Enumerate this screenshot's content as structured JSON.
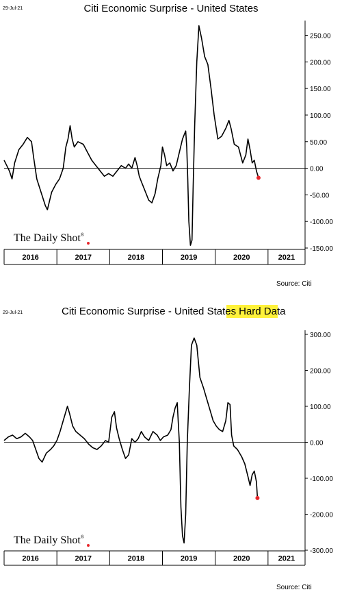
{
  "chart_data": [
    {
      "type": "line",
      "date": "29-Jul-21",
      "title": "Citi Economic Surprise - United States",
      "title_highlight": "",
      "source": "Source: Citi",
      "brand": "The Daily Shot",
      "brand_mark": "®",
      "xlabel": "",
      "ylabel": "",
      "x_labels": [
        "2016",
        "2017",
        "2018",
        "2019",
        "2020",
        "2021"
      ],
      "xlim": [
        2016.0,
        2021.65
      ],
      "ylim": [
        -150,
        270
      ],
      "yticks": [
        250,
        200,
        150,
        100,
        50,
        0,
        -50,
        -100,
        -150
      ],
      "ytick_labels": [
        "250.00",
        "200.00",
        "150.00",
        "100.00",
        "50.00",
        "0.00",
        "-50.00",
        "-100.00",
        "-150.00"
      ],
      "grid": false,
      "zero_line": true,
      "end_marker_color": "#e8262b",
      "series": [
        {
          "values": [
            [
              2016.0,
              15
            ],
            [
              2016.05,
              5
            ],
            [
              2016.1,
              -5
            ],
            [
              2016.15,
              -20
            ],
            [
              2016.2,
              10
            ],
            [
              2016.28,
              35
            ],
            [
              2016.36,
              45
            ],
            [
              2016.44,
              58
            ],
            [
              2016.52,
              50
            ],
            [
              2016.56,
              20
            ],
            [
              2016.62,
              -20
            ],
            [
              2016.7,
              -45
            ],
            [
              2016.78,
              -70
            ],
            [
              2016.82,
              -78
            ],
            [
              2016.9,
              -45
            ],
            [
              2016.98,
              -30
            ],
            [
              2017.05,
              -20
            ],
            [
              2017.12,
              0
            ],
            [
              2017.17,
              40
            ],
            [
              2017.21,
              55
            ],
            [
              2017.25,
              80
            ],
            [
              2017.29,
              55
            ],
            [
              2017.33,
              40
            ],
            [
              2017.4,
              50
            ],
            [
              2017.5,
              45
            ],
            [
              2017.58,
              30
            ],
            [
              2017.66,
              15
            ],
            [
              2017.74,
              5
            ],
            [
              2017.82,
              -5
            ],
            [
              2017.9,
              -15
            ],
            [
              2017.98,
              -10
            ],
            [
              2018.06,
              -15
            ],
            [
              2018.14,
              -5
            ],
            [
              2018.22,
              5
            ],
            [
              2018.3,
              0
            ],
            [
              2018.36,
              8
            ],
            [
              2018.42,
              0
            ],
            [
              2018.48,
              20
            ],
            [
              2018.52,
              5
            ],
            [
              2018.56,
              -15
            ],
            [
              2018.6,
              -25
            ],
            [
              2018.64,
              -35
            ],
            [
              2018.68,
              -45
            ],
            [
              2018.74,
              -60
            ],
            [
              2018.8,
              -65
            ],
            [
              2018.86,
              -48
            ],
            [
              2018.91,
              -20
            ],
            [
              2018.97,
              5
            ],
            [
              2019.0,
              40
            ],
            [
              2019.04,
              25
            ],
            [
              2019.08,
              5
            ],
            [
              2019.14,
              10
            ],
            [
              2019.2,
              -5
            ],
            [
              2019.26,
              5
            ],
            [
              2019.32,
              30
            ],
            [
              2019.38,
              55
            ],
            [
              2019.42,
              65
            ],
            [
              2019.44,
              70
            ],
            [
              2019.46,
              40
            ],
            [
              2019.48,
              -20
            ],
            [
              2019.5,
              -100
            ],
            [
              2019.53,
              -145
            ],
            [
              2019.56,
              -135
            ],
            [
              2019.58,
              -40
            ],
            [
              2019.61,
              80
            ],
            [
              2019.65,
              200
            ],
            [
              2019.69,
              268
            ],
            [
              2019.74,
              245
            ],
            [
              2019.8,
              210
            ],
            [
              2019.86,
              195
            ],
            [
              2019.92,
              150
            ],
            [
              2019.98,
              100
            ],
            [
              2020.05,
              55
            ],
            [
              2020.12,
              60
            ],
            [
              2020.2,
              75
            ],
            [
              2020.26,
              90
            ],
            [
              2020.3,
              75
            ],
            [
              2020.36,
              45
            ],
            [
              2020.44,
              40
            ],
            [
              2020.52,
              10
            ],
            [
              2020.58,
              25
            ],
            [
              2020.62,
              55
            ],
            [
              2020.66,
              35
            ],
            [
              2020.7,
              10
            ],
            [
              2020.74,
              15
            ],
            [
              2020.78,
              -5
            ],
            [
              2020.82,
              -18
            ]
          ]
        }
      ]
    },
    {
      "type": "line",
      "date": "29-Jul-21",
      "title": "Citi Economic Surprise - United States",
      "title_highlight": "Hard Data",
      "source": "Source: Citi",
      "brand": "The Daily Shot",
      "brand_mark": "®",
      "xlabel": "",
      "ylabel": "",
      "x_labels": [
        "2016",
        "2017",
        "2018",
        "2019",
        "2020",
        "2021"
      ],
      "xlim": [
        2016.0,
        2021.65
      ],
      "ylim": [
        -300,
        300
      ],
      "yticks": [
        300,
        200,
        100,
        0,
        -100,
        -200,
        -300
      ],
      "ytick_labels": [
        "300.00",
        "200.00",
        "100.00",
        "0.00",
        "-100.00",
        "-200.00",
        "-300.00"
      ],
      "grid": false,
      "zero_line": true,
      "end_marker_color": "#e8262b",
      "series": [
        {
          "values": [
            [
              2016.0,
              5
            ],
            [
              2016.08,
              15
            ],
            [
              2016.16,
              20
            ],
            [
              2016.24,
              10
            ],
            [
              2016.32,
              15
            ],
            [
              2016.4,
              25
            ],
            [
              2016.48,
              15
            ],
            [
              2016.54,
              5
            ],
            [
              2016.6,
              -20
            ],
            [
              2016.66,
              -45
            ],
            [
              2016.72,
              -55
            ],
            [
              2016.8,
              -30
            ],
            [
              2016.88,
              -20
            ],
            [
              2016.94,
              -10
            ],
            [
              2017.0,
              5
            ],
            [
              2017.06,
              30
            ],
            [
              2017.12,
              60
            ],
            [
              2017.16,
              80
            ],
            [
              2017.2,
              100
            ],
            [
              2017.24,
              80
            ],
            [
              2017.3,
              45
            ],
            [
              2017.36,
              30
            ],
            [
              2017.44,
              20
            ],
            [
              2017.52,
              10
            ],
            [
              2017.6,
              -5
            ],
            [
              2017.68,
              -15
            ],
            [
              2017.76,
              -20
            ],
            [
              2017.84,
              -10
            ],
            [
              2017.92,
              5
            ],
            [
              2017.98,
              0
            ],
            [
              2018.04,
              70
            ],
            [
              2018.09,
              85
            ],
            [
              2018.13,
              40
            ],
            [
              2018.18,
              10
            ],
            [
              2018.24,
              -20
            ],
            [
              2018.3,
              -45
            ],
            [
              2018.36,
              -35
            ],
            [
              2018.42,
              10
            ],
            [
              2018.48,
              0
            ],
            [
              2018.54,
              10
            ],
            [
              2018.6,
              30
            ],
            [
              2018.66,
              15
            ],
            [
              2018.74,
              5
            ],
            [
              2018.82,
              30
            ],
            [
              2018.9,
              20
            ],
            [
              2018.96,
              5
            ],
            [
              2019.02,
              15
            ],
            [
              2019.1,
              20
            ],
            [
              2019.16,
              35
            ],
            [
              2019.2,
              70
            ],
            [
              2019.24,
              95
            ],
            [
              2019.28,
              110
            ],
            [
              2019.32,
              0
            ],
            [
              2019.35,
              -180
            ],
            [
              2019.38,
              -260
            ],
            [
              2019.41,
              -280
            ],
            [
              2019.44,
              -200
            ],
            [
              2019.47,
              0
            ],
            [
              2019.51,
              150
            ],
            [
              2019.55,
              270
            ],
            [
              2019.6,
              290
            ],
            [
              2019.65,
              270
            ],
            [
              2019.71,
              180
            ],
            [
              2019.78,
              150
            ],
            [
              2019.84,
              120
            ],
            [
              2019.9,
              90
            ],
            [
              2019.96,
              60
            ],
            [
              2020.02,
              45
            ],
            [
              2020.08,
              35
            ],
            [
              2020.14,
              30
            ],
            [
              2020.2,
              60
            ],
            [
              2020.24,
              110
            ],
            [
              2020.28,
              105
            ],
            [
              2020.31,
              20
            ],
            [
              2020.35,
              -10
            ],
            [
              2020.42,
              -20
            ],
            [
              2020.5,
              -40
            ],
            [
              2020.56,
              -60
            ],
            [
              2020.62,
              -95
            ],
            [
              2020.66,
              -120
            ],
            [
              2020.7,
              -90
            ],
            [
              2020.74,
              -80
            ],
            [
              2020.78,
              -110
            ],
            [
              2020.8,
              -155
            ]
          ]
        }
      ]
    }
  ]
}
